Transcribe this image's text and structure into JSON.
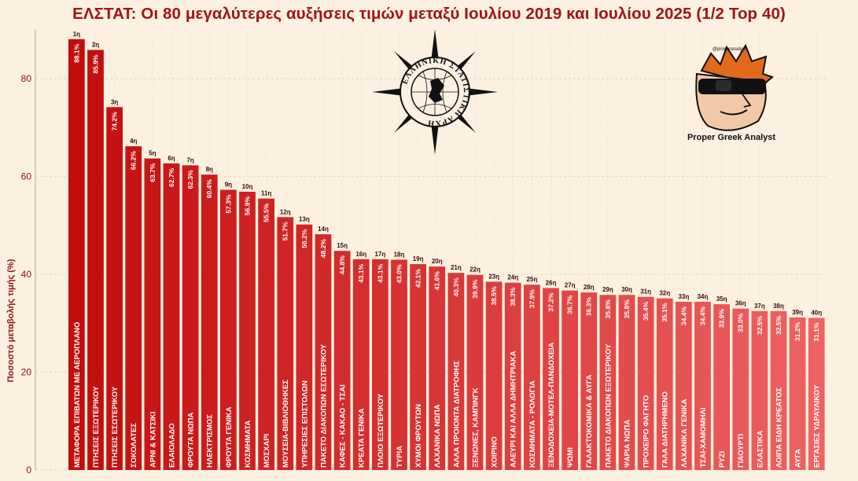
{
  "chart_data": {
    "type": "bar",
    "title": "ΕΛΣΤΑΤ: Οι 80 μεγαλύτερες αυξήσεις τιμών μεταξύ Ιουλίου 2019 και Ιουλίου 2025 (1/2 Top 40)",
    "ylabel": "Ποσοστό μεταβολής τιμής (%)",
    "xlabel": "",
    "ylim": [
      0,
      90
    ],
    "yticks": [
      "0",
      "20",
      "40",
      "60",
      "80"
    ],
    "grid": true,
    "categories": [
      "ΜΕΤΑΦΟΡΑ ΕΠΙΒΑΤΩΝ ΜΕ ΑΕΡΟΠΛΑΝΟ",
      "ΠΤΗΣΕΙΣ ΕΞΩΤΕΡΙΚΟΥ",
      "ΠΤΗΣΕΙΣ ΕΣΩΤΕΡΙΚΟΥ",
      "ΣΟΚΟΛΑΤΕΣ",
      "ΑΡΝΙ & ΚΑΤΣΙΚΙ",
      "ΕΛΑΙΟΛΑΔΟ",
      "ΦΡΟΥΤΑ ΝΩΠΑ",
      "ΗΛΕΚΤΡΙΣΜΟΣ",
      "ΦΡΟΥΤΑ ΓΕΝΙΚΑ",
      "ΚΟΣΜΗΜΑΤΑ",
      "ΜΟΣΧΑΡΙ",
      "ΜΟΥΣΕΙΑ-ΒΙΒΛΙΟΘΗΚΕΣ",
      "ΥΠΗΡΕΣΙΕΣ ΕΠΙΣΤΟΛΩΝ",
      "ΠΑΚΕΤΟ ΔΙΑΚΟΠΩΝ ΕΣΩΤΕΡΙΚΟΥ",
      "ΚΑΦΕΣ - ΚΑΚΑΟ - ΤΣΑΙ",
      "ΚΡΕΑΤΑ ΓΕΝΙΚΑ",
      "ΠΛΟΙΟ ΕΞΩΤΕΡΙΚΟΥ",
      "ΤΥΡΙΑ",
      "ΧΥΜΟΙ ΦΡΟΥΤΩΝ",
      "ΛΑΧΑΝΙΚΑ ΝΩΠΑ",
      "ΑΛΛΑ ΠΡΟΙΟΝΤΑ ΔΙΑΤΡΟΦΗΣ",
      "ΞΕΝΩΝΕΣ, ΚΑΜΠΙΝΓΚ",
      "ΧΟΙΡΙΝΟ",
      "ΑΛΕΥΡΙ ΚΑΙ ΑΛΛΑ ΔΗΜΗΤΡΙΑΚΑ",
      "ΚΟΣΜΗΜΑΤΑ - ΡΟΛΟΓΙΑ",
      "ΞΕΝΟΔΟΧΕΙΑ-ΜΟΤΕΛ-ΠΑΝΔΟΧΕΙΑ",
      "ΨΩΜΙ",
      "ΓΑΛΑΚΤΟΚΟΜΙΚΑ & ΑΥΓΑ",
      "ΠΑΚΕΤΟ ΔΙΑΚΟΠΩΝ ΕΞΩΤΕΡΙΚΟΥ",
      "ΨΑΡΙΑ ΝΩΠΑ",
      "ΠΡΟΧΕΙΡΟ ΦΑΓΗΤΟ",
      "ΓΑΛΑ ΔΙΑΤΗΡΗΜΕΝΟ",
      "ΛΑΧΑΝΙΚΑ ΓΕΝΙΚΑ",
      "ΤΣΑΙ-ΧΑΜΟΜΗΛΙ",
      "ΡΥΖΙ",
      "ΓΙΑΟΥΡΤΙ",
      "ΕΛΑΣΤΙΚΑ",
      "ΛΟΙΠΑ ΕΙΔΗ ΚΡΕΑΤΟΣ",
      "ΑΥΓΑ",
      "ΕΡΓΑΣΙΕΣ ΥΔΡΑΥΛΙΚΟΥ"
    ],
    "values": [
      88.1,
      85.9,
      74.2,
      66.2,
      63.7,
      62.7,
      62.3,
      60.4,
      57.3,
      56.9,
      55.5,
      51.7,
      50.2,
      48.2,
      44.8,
      43.1,
      43.1,
      43.0,
      42.1,
      41.6,
      40.3,
      39.9,
      38.5,
      38.3,
      37.9,
      37.2,
      36.7,
      36.3,
      35.8,
      35.8,
      35.4,
      35.1,
      34.4,
      34.4,
      33.9,
      33.0,
      32.5,
      32.5,
      31.2,
      31.1
    ],
    "value_labels": [
      "88.1%",
      "85.9%",
      "74.2%",
      "66.2%",
      "63.7%",
      "62.7%",
      "62.3%",
      "60.4%",
      "57.3%",
      "56.9%",
      "55.5%",
      "51.7%",
      "50.2%",
      "48.2%",
      "44.8%",
      "43.1%",
      "43.1%",
      "43.0%",
      "42.1%",
      "41.6%",
      "40.3%",
      "39.9%",
      "38.5%",
      "38.3%",
      "37.9%",
      "37.2%",
      "36.7%",
      "36.3%",
      "35.8%",
      "35.8%",
      "35.4%",
      "35.1%",
      "34.4%",
      "34.4%",
      "33.9%",
      "33.0%",
      "32.5%",
      "32.5%",
      "31.2%",
      "31.1%"
    ],
    "ranks": [
      "1η",
      "2η",
      "3η",
      "4η",
      "5η",
      "6η",
      "7η",
      "8η",
      "9η",
      "10η",
      "11η",
      "12η",
      "13η",
      "14η",
      "15η",
      "16η",
      "17η",
      "18η",
      "19η",
      "20η",
      "21η",
      "22η",
      "23η",
      "24η",
      "25η",
      "26η",
      "27η",
      "28η",
      "29η",
      "30η",
      "31η",
      "32η",
      "33η",
      "34η",
      "35η",
      "36η",
      "37η",
      "38η",
      "39η",
      "40η"
    ],
    "colors": {
      "bar_start": "#c30d0d",
      "bar_end": "#ee6262",
      "axis_text": "#8a1010",
      "background": "#fcf1e0",
      "grid": "#e6d6c4"
    }
  },
  "logos": {
    "elstat": {
      "icon": "compass-rose-globe-icon",
      "text": "ΕΛΛΗΝΙΚΗ ΣΤΑΤΙΣΤΙΚΗ ΑΡΧΗ"
    },
    "brand": {
      "icon": "sunglasses-character-icon",
      "name": "Proper Greek Analyst",
      "handle": "@properanalyst"
    }
  }
}
